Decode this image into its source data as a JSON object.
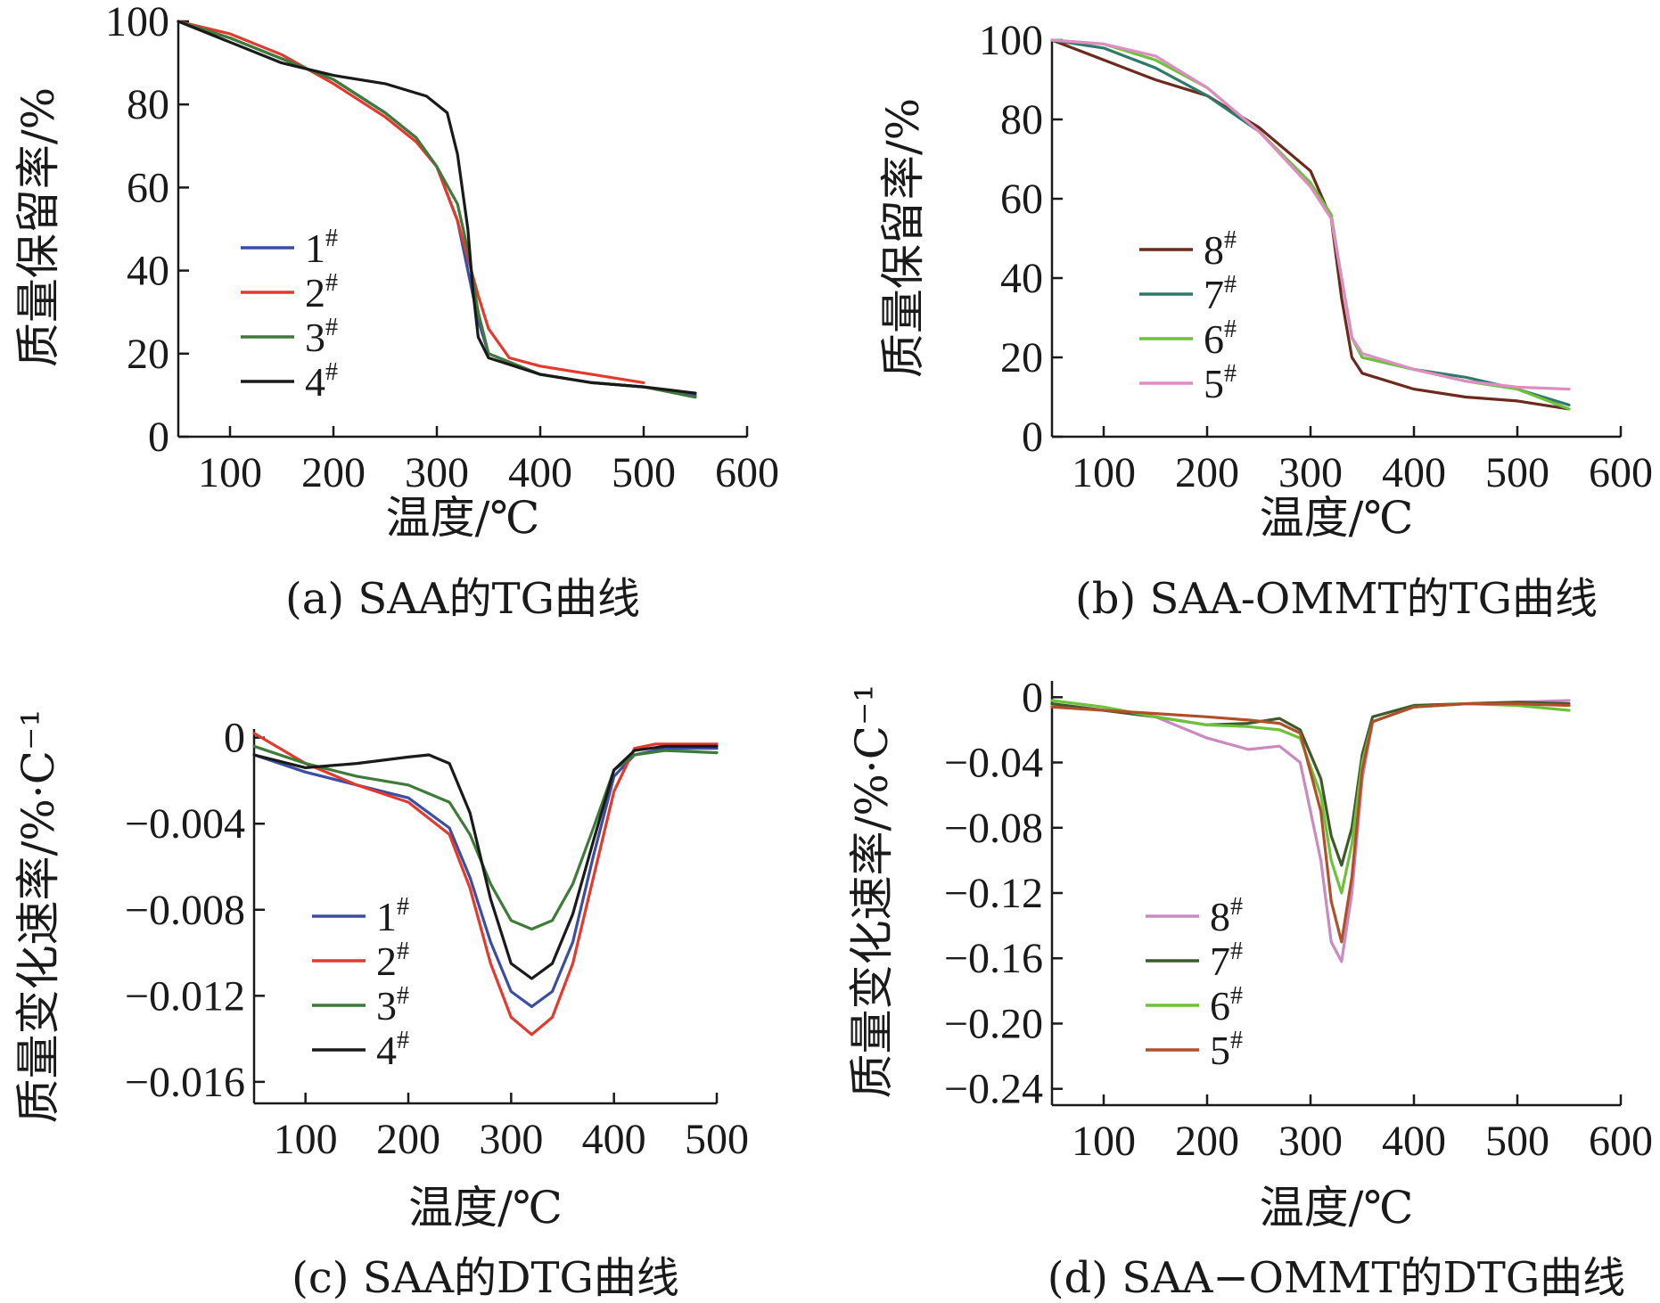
{
  "figure": {
    "colors": {
      "blue": "#3a4fa3",
      "red": "#e23a2e",
      "green": "#3e7a3a",
      "black": "#1a1a1a",
      "brown": "#6b2a1c",
      "teal": "#2e7a6a",
      "lime": "#6cc23a",
      "pink": "#e08cc4",
      "lilac": "#c98ac0",
      "darkgreen": "#3d5a2a",
      "rust": "#b0502a"
    }
  },
  "chart_data": [
    {
      "id": "a",
      "type": "line",
      "caption": "(a) SAA的TG曲线",
      "xlabel": "温度/℃",
      "ylabel": "质量保留率/%",
      "xlim": [
        50,
        600
      ],
      "ylim": [
        0,
        100
      ],
      "xticks": [
        100,
        200,
        300,
        400,
        500,
        600
      ],
      "yticks": [
        0,
        20,
        40,
        60,
        80,
        100
      ],
      "ytick_labels": [
        "0",
        "20",
        "40",
        "60",
        "80",
        "100"
      ],
      "legend_position": "center-left",
      "series": [
        {
          "name": "1#",
          "color": "#3a4fa3",
          "x": [
            50,
            100,
            150,
            200,
            250,
            280,
            300,
            320,
            330,
            340,
            350,
            400,
            450,
            500,
            550
          ],
          "y": [
            100,
            96,
            91,
            86,
            78,
            72,
            65,
            52,
            40,
            28,
            20,
            15,
            13,
            12,
            10
          ]
        },
        {
          "name": "2#",
          "color": "#e23a2e",
          "x": [
            50,
            100,
            150,
            200,
            250,
            280,
            300,
            320,
            330,
            340,
            350,
            370,
            400,
            450,
            500
          ],
          "y": [
            100,
            97,
            92,
            85,
            77,
            71,
            65,
            52,
            43,
            34,
            26,
            19,
            17,
            15,
            13
          ]
        },
        {
          "name": "3#",
          "color": "#3e7a3a",
          "x": [
            50,
            100,
            150,
            200,
            250,
            280,
            300,
            320,
            330,
            340,
            350,
            400,
            450,
            500,
            550
          ],
          "y": [
            100,
            96,
            91,
            86,
            78,
            72,
            65,
            56,
            45,
            30,
            20,
            15,
            13,
            12,
            9.5
          ]
        },
        {
          "name": "4#",
          "color": "#1a1a1a",
          "x": [
            50,
            100,
            150,
            200,
            250,
            290,
            310,
            320,
            330,
            335,
            340,
            350,
            400,
            450,
            500,
            550
          ],
          "y": [
            100,
            95,
            90,
            87,
            85,
            82,
            78,
            68,
            50,
            35,
            24,
            19,
            15,
            13,
            12,
            10.5
          ]
        }
      ]
    },
    {
      "id": "b",
      "type": "line",
      "caption": "(b) SAA-OMMT的TG曲线",
      "xlabel": "温度/℃",
      "ylabel": "质量保留率/%",
      "xlim": [
        50,
        600
      ],
      "ylim": [
        0,
        100
      ],
      "xticks": [
        100,
        200,
        300,
        400,
        500,
        600
      ],
      "yticks": [
        0,
        20,
        40,
        60,
        80,
        100
      ],
      "ytick_labels": [
        "0",
        "20",
        "40",
        "60",
        "80",
        "100"
      ],
      "legend_position": "center-left",
      "series": [
        {
          "name": "8#",
          "color": "#6b2a1c",
          "x": [
            50,
            100,
            150,
            200,
            250,
            300,
            320,
            330,
            340,
            350,
            400,
            450,
            500,
            550
          ],
          "y": [
            100,
            95,
            90,
            86,
            78,
            67,
            55,
            35,
            20,
            16,
            12,
            10,
            9,
            7
          ]
        },
        {
          "name": "7#",
          "color": "#2e7a6a",
          "x": [
            50,
            100,
            150,
            200,
            250,
            300,
            320,
            330,
            340,
            350,
            400,
            450,
            500,
            550
          ],
          "y": [
            100,
            98,
            93,
            86,
            77,
            64,
            55,
            40,
            25,
            20,
            17,
            15,
            12,
            8
          ]
        },
        {
          "name": "6#",
          "color": "#6cc23a",
          "x": [
            50,
            100,
            150,
            200,
            250,
            300,
            320,
            330,
            340,
            350,
            400,
            450,
            500,
            550
          ],
          "y": [
            100,
            99,
            95,
            88,
            77,
            64,
            56,
            40,
            25,
            20,
            17,
            14,
            12,
            7
          ]
        },
        {
          "name": "5#",
          "color": "#e08cc4",
          "x": [
            50,
            100,
            150,
            200,
            250,
            300,
            320,
            330,
            340,
            350,
            400,
            450,
            500,
            550
          ],
          "y": [
            100,
            99,
            96,
            88,
            77,
            63,
            55,
            40,
            25,
            21,
            17,
            14,
            12.5,
            12
          ]
        }
      ]
    },
    {
      "id": "c",
      "type": "line",
      "caption": "(c) SAA的DTG曲线",
      "xlabel": "温度/℃",
      "ylabel": "质量变化速率/%·C⁻¹",
      "xlim": [
        50,
        500
      ],
      "ylim": [
        -0.017,
        0.0004
      ],
      "xticks": [
        100,
        200,
        300,
        400,
        500
      ],
      "yticks": [
        0,
        -0.004,
        -0.008,
        -0.012,
        -0.016
      ],
      "ytick_labels": [
        "0",
        "−0.004",
        "−0.008",
        "−0.012",
        "−0.016"
      ],
      "legend_position": "center-left",
      "series": [
        {
          "name": "1#",
          "color": "#3a4fa3",
          "x": [
            50,
            100,
            150,
            200,
            240,
            260,
            280,
            300,
            320,
            340,
            360,
            380,
            400,
            420,
            450,
            500
          ],
          "y": [
            -0.0008,
            -0.0016,
            -0.0022,
            -0.0028,
            -0.0042,
            -0.0065,
            -0.0095,
            -0.0118,
            -0.0125,
            -0.0118,
            -0.0095,
            -0.0055,
            -0.0018,
            -0.0008,
            -0.0005,
            -0.0005
          ]
        },
        {
          "name": "2#",
          "color": "#e23a2e",
          "x": [
            50,
            100,
            150,
            200,
            240,
            260,
            280,
            300,
            320,
            340,
            360,
            380,
            400,
            420,
            440,
            500
          ],
          "y": [
            0.0002,
            -0.0012,
            -0.0022,
            -0.003,
            -0.0045,
            -0.007,
            -0.0105,
            -0.013,
            -0.0138,
            -0.013,
            -0.0105,
            -0.0065,
            -0.0025,
            -0.0005,
            -0.0003,
            -0.0003
          ]
        },
        {
          "name": "3#",
          "color": "#3e7a3a",
          "x": [
            50,
            100,
            150,
            200,
            240,
            260,
            280,
            300,
            320,
            340,
            360,
            380,
            400,
            420,
            450,
            500
          ],
          "y": [
            -0.0004,
            -0.0012,
            -0.0018,
            -0.0022,
            -0.003,
            -0.0045,
            -0.0068,
            -0.0085,
            -0.0089,
            -0.0085,
            -0.0068,
            -0.0042,
            -0.0015,
            -0.0008,
            -0.0006,
            -0.0007
          ]
        },
        {
          "name": "4#",
          "color": "#1a1a1a",
          "x": [
            50,
            100,
            150,
            200,
            220,
            240,
            260,
            280,
            300,
            320,
            340,
            360,
            380,
            400,
            420,
            450,
            500
          ],
          "y": [
            -0.0008,
            -0.0014,
            -0.0012,
            -0.0009,
            -0.0008,
            -0.0012,
            -0.0035,
            -0.0075,
            -0.0105,
            -0.0112,
            -0.0105,
            -0.0082,
            -0.0048,
            -0.0015,
            -0.0006,
            -0.0004,
            -0.0004
          ]
        }
      ]
    },
    {
      "id": "d",
      "type": "line",
      "caption": "(d) SAA−OMMT的DTG曲线",
      "xlabel": "温度/℃",
      "ylabel": "质量变化速率/%·C⁻¹",
      "xlim": [
        50,
        600
      ],
      "ylim": [
        -0.25,
        0.01
      ],
      "xticks": [
        100,
        200,
        300,
        400,
        500,
        600
      ],
      "yticks": [
        0,
        -0.04,
        -0.08,
        -0.12,
        -0.16,
        -0.2,
        -0.24
      ],
      "ytick_labels": [
        "0",
        "−0.04",
        "−0.08",
        "−0.12",
        "−0.16",
        "−0.20",
        "−0.24"
      ],
      "legend_position": "center-left",
      "series": [
        {
          "name": "8#",
          "color": "#c98ac0",
          "x": [
            50,
            100,
            150,
            200,
            240,
            270,
            290,
            310,
            320,
            330,
            340,
            350,
            360,
            400,
            450,
            500,
            550
          ],
          "y": [
            -0.005,
            -0.008,
            -0.012,
            -0.025,
            -0.032,
            -0.03,
            -0.04,
            -0.1,
            -0.15,
            -0.162,
            -0.12,
            -0.05,
            -0.015,
            -0.006,
            -0.004,
            -0.003,
            -0.002
          ]
        },
        {
          "name": "7#",
          "color": "#3d5a2a",
          "x": [
            50,
            100,
            150,
            200,
            240,
            270,
            290,
            310,
            320,
            330,
            340,
            350,
            360,
            400,
            450,
            500,
            550
          ],
          "y": [
            -0.004,
            -0.008,
            -0.012,
            -0.017,
            -0.016,
            -0.013,
            -0.02,
            -0.05,
            -0.085,
            -0.103,
            -0.08,
            -0.035,
            -0.012,
            -0.005,
            -0.004,
            -0.003,
            -0.004
          ]
        },
        {
          "name": "6#",
          "color": "#6cc23a",
          "x": [
            50,
            100,
            150,
            200,
            240,
            270,
            290,
            310,
            320,
            330,
            340,
            350,
            360,
            400,
            450,
            500,
            550
          ],
          "y": [
            -0.002,
            -0.006,
            -0.012,
            -0.017,
            -0.018,
            -0.02,
            -0.025,
            -0.06,
            -0.1,
            -0.12,
            -0.09,
            -0.04,
            -0.015,
            -0.006,
            -0.004,
            -0.005,
            -0.008
          ]
        },
        {
          "name": "5#",
          "color": "#b0502a",
          "x": [
            50,
            100,
            150,
            200,
            240,
            270,
            290,
            310,
            320,
            330,
            340,
            350,
            360,
            400,
            450,
            500,
            550
          ],
          "y": [
            -0.006,
            -0.008,
            -0.01,
            -0.012,
            -0.014,
            -0.016,
            -0.022,
            -0.07,
            -0.125,
            -0.15,
            -0.11,
            -0.045,
            -0.015,
            -0.006,
            -0.004,
            -0.004,
            -0.005
          ]
        }
      ]
    }
  ]
}
